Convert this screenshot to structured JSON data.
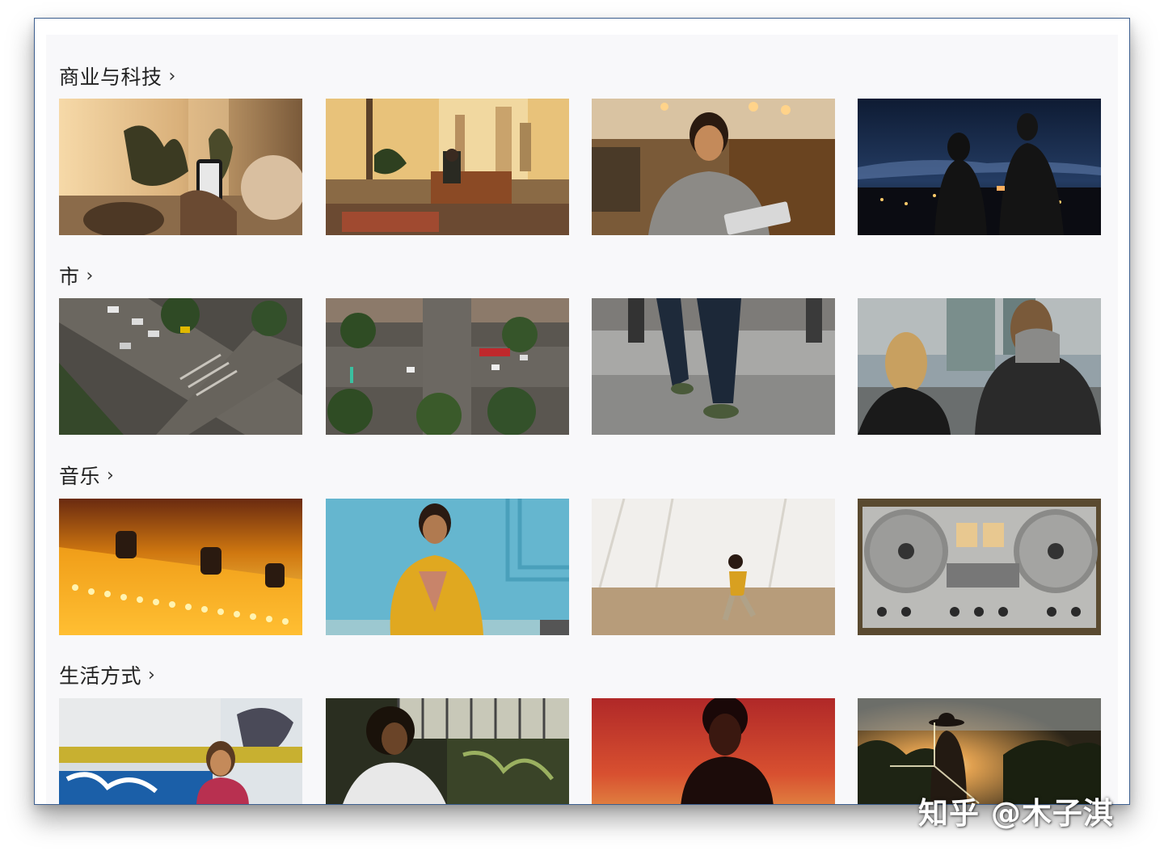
{
  "sections": [
    {
      "title": "商业与科技",
      "chevron": "›",
      "thumbs": [
        {
          "name": "thumb-phone-on-couch",
          "desc": "person holding phone on couch at sunset"
        },
        {
          "name": "thumb-vr-living-room",
          "desc": "man with VR headset in apartment"
        },
        {
          "name": "thumb-woman-tablet-cafe",
          "desc": "woman using tablet in cafe"
        },
        {
          "name": "thumb-night-rooftop-phones",
          "desc": "two people with phones on rooftop at night"
        }
      ]
    },
    {
      "title": "市",
      "chevron": "›",
      "thumbs": [
        {
          "name": "thumb-aerial-intersection",
          "desc": "aerial view of city intersection"
        },
        {
          "name": "thumb-aerial-avenue",
          "desc": "aerial view of avenue with trees"
        },
        {
          "name": "thumb-walking-legs",
          "desc": "legs walking on plaza"
        },
        {
          "name": "thumb-couple-city",
          "desc": "couple looking at skyline"
        }
      ]
    },
    {
      "title": "音乐",
      "chevron": "›",
      "thumbs": [
        {
          "name": "thumb-stage-lights",
          "desc": "warm stage marquee lights"
        },
        {
          "name": "thumb-woman-yellow-shirt",
          "desc": "woman in yellow shirt by blue wall"
        },
        {
          "name": "thumb-dancer",
          "desc": "dancer in empty hall"
        },
        {
          "name": "thumb-reel-to-reel",
          "desc": "reel-to-reel tape deck"
        }
      ]
    },
    {
      "title": "生活方式",
      "chevron": "›",
      "thumbs": [
        {
          "name": "thumb-graffiti-woman",
          "desc": "woman by graffiti wall"
        },
        {
          "name": "thumb-man-graffiti-room",
          "desc": "man sitting by graffiti"
        },
        {
          "name": "thumb-man-red-sunset",
          "desc": "man silhouette against red sky"
        },
        {
          "name": "thumb-cowboy-sunset",
          "desc": "cowboy silhouette at sunset"
        }
      ]
    }
  ],
  "watermark": "知乎 @木子淇",
  "colors": {
    "border": "#3d5f8f",
    "content_bg": "#f8f8fa",
    "title_text": "#222222"
  }
}
